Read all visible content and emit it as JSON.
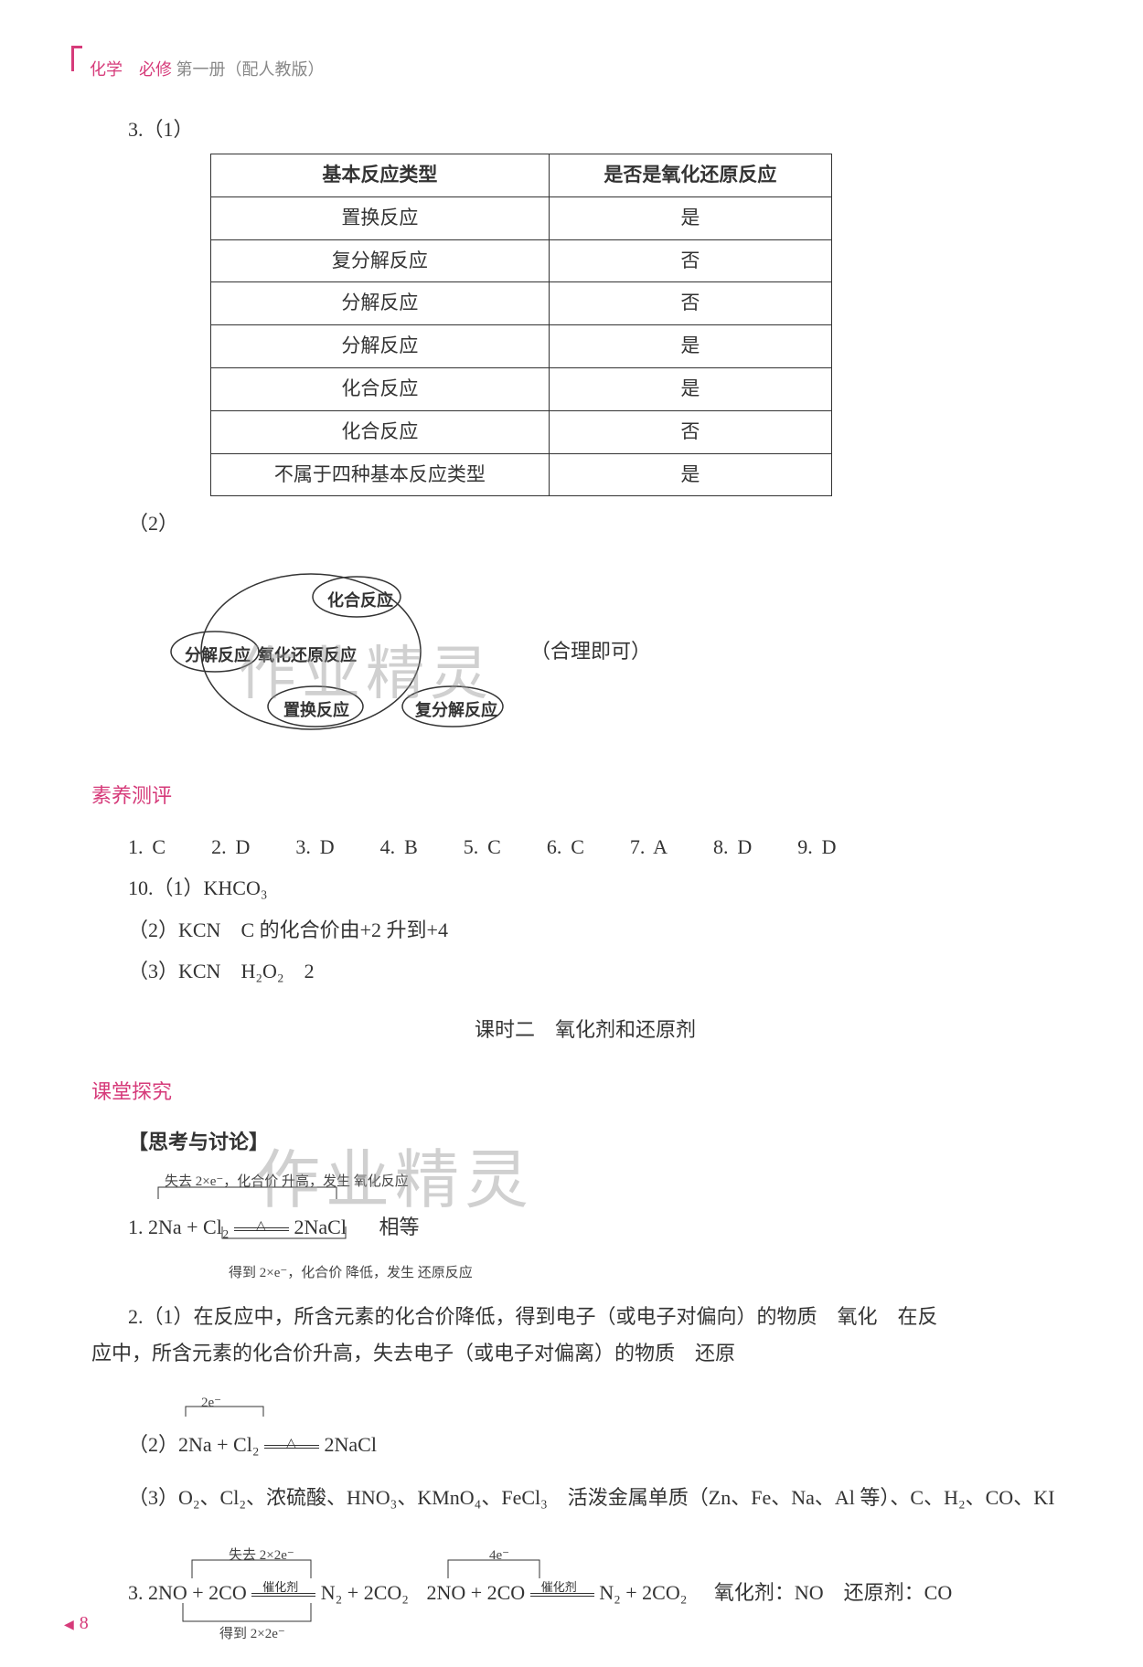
{
  "header": {
    "subject": "化学　必修",
    "rest": "第一册（配人教版）"
  },
  "q3_label": "3.（1）",
  "table": {
    "head1": "基本反应类型",
    "head2": "是否是氧化还原反应",
    "rows": [
      [
        "置换反应",
        "是"
      ],
      [
        "复分解反应",
        "否"
      ],
      [
        "分解反应",
        "否"
      ],
      [
        "分解反应",
        "是"
      ],
      [
        "化合反应",
        "是"
      ],
      [
        "化合反应",
        "否"
      ],
      [
        "不属于四种基本反应类型",
        "是"
      ]
    ]
  },
  "sub2_label": "（2）",
  "venn": {
    "center": "氧化还原反应",
    "top": "化合反应",
    "left": "分解反应",
    "bottom": "置换反应",
    "outside": "复分解反应",
    "note": "（合理即可）"
  },
  "section1": "素养测评",
  "answers": {
    "items": [
      "1. C",
      "2. D",
      "3. D",
      "4. B",
      "5. C",
      "6. C",
      "7. A",
      "8. D",
      "9. D"
    ]
  },
  "q10_1": "10.（1）KHCO₃",
  "q10_2": "（2）KCN　C 的化合价由+2 升到+4",
  "q10_3": "（3）KCN　H₂O₂　2",
  "lesson_title": "课时二　氧化剂和还原剂",
  "section2": "课堂探究",
  "think_title": "【思考与讨论】",
  "eq1": {
    "top_anno": "失去 2×e⁻，化合价 升高，发生 氧化反应",
    "main_left": "1. 2Na + Cl₂",
    "main_right": "2NaCl",
    "equal_note": "相等",
    "bot_anno": "得到 2×e⁻，化合价 降低，发生 还原反应"
  },
  "q2_1": "2.（1）在反应中，所含元素的化合价降低，得到电子（或电子对偏向）的物质　氧化　在反",
  "q2_1b": "应中，所含元素的化合价升高，失去电子（或电子对偏离）的物质　还原",
  "q2_2_top": "2e⁻",
  "q2_2_left": "（2）2Na + Cl₂",
  "q2_2_right": "2NaCl",
  "q2_3": "（3）O₂、Cl₂、浓硫酸、HNO₃、KMnO₄、FeCl₃　活泼金属单质（Zn、Fe、Na、Al 等）、C、H₂、CO、KI",
  "q3_bottom": {
    "left_top": "失去 2×2e⁻",
    "mid_top": "4e⁻",
    "cat": "催化剂",
    "eq_left": "3. 2NO + 2CO",
    "eq_mid1": "N₂ + 2CO₂",
    "eq_mid2": "2NO + 2CO",
    "eq_right": "N₂ + 2CO₂",
    "tail": "氧化剂：NO　还原剂：CO",
    "bot": "得到 2×2e⁻"
  },
  "wm1": "作业精灵",
  "wm2": "作业精灵",
  "page_num": "8"
}
